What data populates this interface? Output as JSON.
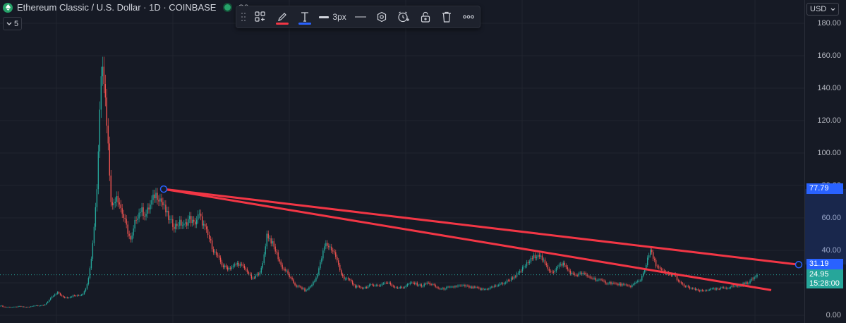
{
  "legend": {
    "symbol_name": "Ethereum Classic / U.S. Dollar · 1D · COINBASE",
    "ohlc_prefix": "O2",
    "indicators_count": "5",
    "logo_color": "#26a269"
  },
  "toolbar": {
    "items": [
      "drag-handle-icon",
      "templates-icon",
      "line-color-icon",
      "text-color-icon",
      "line-width",
      "line-style-icon",
      "settings-icon",
      "alert-icon",
      "lock-icon",
      "delete-icon",
      "more-icon"
    ],
    "line_color": "#f23645",
    "text_color": "#2962ff",
    "width_label": "3px"
  },
  "price_axis": {
    "currency": "USD",
    "ticks": [
      "180.00",
      "160.00",
      "140.00",
      "120.00",
      "100.00",
      "80.00",
      "60.00",
      "40.00",
      "20.00",
      "0.00"
    ],
    "badges": {
      "drawing_top": "77.79",
      "drawing_right": "31.19",
      "last_price": "24.95",
      "countdown": "15:28:00"
    },
    "colors": {
      "drawing": "#2962ff",
      "last_price": "#26a69a"
    }
  },
  "chart_data": {
    "type": "candlestick",
    "symbol": "ETC/USD",
    "interval": "1D",
    "exchange": "COINBASE",
    "ylim": [
      0,
      190
    ],
    "up_color": "#26a69a",
    "down_color": "#ef5350",
    "close_profile": [
      6,
      5,
      5,
      5,
      5.5,
      5,
      5,
      6,
      6,
      6,
      9,
      12,
      14,
      11,
      11,
      12,
      12,
      13,
      19,
      40,
      80,
      165,
      120,
      65,
      75,
      65,
      55,
      45,
      60,
      65,
      62,
      68,
      75,
      72,
      65,
      58,
      55,
      57,
      55,
      60,
      56,
      62,
      55,
      48,
      40,
      35,
      30,
      29,
      30,
      32,
      30,
      27,
      22,
      25,
      29,
      50,
      45,
      38,
      30,
      27,
      22,
      18,
      17,
      15,
      18,
      22,
      32,
      44,
      42,
      38,
      28,
      22,
      22,
      18,
      17,
      17,
      18,
      19,
      18,
      20,
      20,
      18,
      17,
      17,
      19,
      20,
      19,
      18,
      20,
      19,
      17,
      16,
      17,
      17,
      18,
      18,
      18,
      17,
      17,
      16,
      16,
      17,
      18,
      19,
      20,
      22,
      24,
      26,
      30,
      33,
      36,
      38,
      33,
      28,
      27,
      30,
      32,
      28,
      25,
      25,
      26,
      24,
      23,
      22,
      21,
      20,
      20,
      19,
      19,
      18,
      18,
      20,
      22,
      30,
      40,
      32,
      28,
      26,
      25,
      25,
      20,
      18,
      17,
      16,
      15,
      15,
      16,
      16,
      16,
      17,
      17,
      18,
      18,
      19,
      20,
      22,
      24.95
    ],
    "trendlines": [
      {
        "name": "upper",
        "from": 77.79,
        "to": 31.19,
        "color": "#f23645"
      },
      {
        "name": "lower",
        "from": 77.79,
        "to": 15.5,
        "color": "#f23645"
      }
    ],
    "last_price": 24.95
  }
}
